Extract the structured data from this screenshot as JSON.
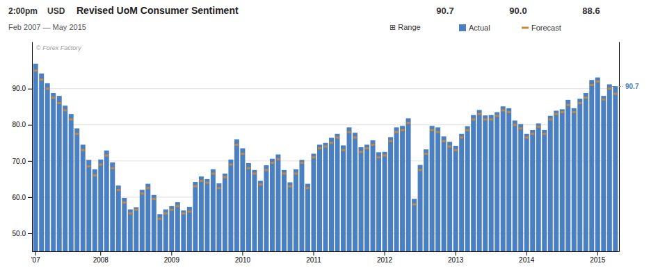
{
  "chart_data": {
    "type": "bar",
    "title": "Revised UoM Consumer Sentiment",
    "subtitle": "Feb 2007 — May 2015",
    "annotations": [
      "2:00pm",
      "USD",
      "90.7",
      "90.0",
      "88.6",
      "⊞ Range",
      "© Forex Factory"
    ],
    "categories": [
      "'07",
      null,
      null,
      null,
      null,
      null,
      null,
      null,
      null,
      null,
      null,
      "2008",
      null,
      null,
      null,
      null,
      null,
      null,
      null,
      null,
      null,
      null,
      null,
      "2009",
      null,
      null,
      null,
      null,
      null,
      null,
      null,
      null,
      null,
      null,
      null,
      "2010",
      null,
      null,
      null,
      null,
      null,
      null,
      null,
      null,
      null,
      null,
      null,
      "2011",
      null,
      null,
      null,
      null,
      null,
      null,
      null,
      null,
      null,
      null,
      null,
      "2012",
      null,
      null,
      null,
      null,
      null,
      null,
      null,
      null,
      null,
      null,
      null,
      "2013",
      null,
      null,
      null,
      null,
      null,
      null,
      null,
      null,
      null,
      null,
      null,
      "2014",
      null,
      null,
      null,
      null,
      null,
      null,
      null,
      null,
      null,
      null,
      null,
      "2015",
      null,
      null,
      null
    ],
    "series": [
      {
        "name": "Actual",
        "type": "bar",
        "color": "#4a7fc1",
        "values": [
          96.9,
          94.2,
          91.5,
          88.8,
          88.0,
          85.3,
          83.0,
          79.0,
          74.5,
          70.3,
          67.7,
          70.4,
          72.9,
          69.6,
          63.2,
          59.8,
          56.6,
          57.2,
          62.0,
          63.7,
          60.6,
          55.3,
          56.6,
          57.5,
          58.6,
          56.3,
          57.3,
          64.2,
          65.7,
          65.0,
          67.7,
          63.8,
          66.5,
          70.4,
          76.0,
          73.5,
          69.4,
          67.5,
          64.5,
          68.8,
          70.6,
          71.8,
          67.5,
          64.1,
          67.7,
          70.3,
          63.7,
          72.0,
          74.5,
          75.0,
          76.4,
          77.5,
          74.3,
          79.3,
          77.8,
          73.8,
          74.5,
          75.7,
          72.4,
          72.5,
          76.6,
          79.3,
          79.7,
          81.8,
          59.5,
          68.9,
          73.2,
          79.7,
          79.3,
          76.8,
          75.3,
          74.2,
          77.5,
          79.6,
          82.7,
          84.1,
          82.6,
          82.7,
          83.5,
          85.1,
          84.6,
          81.2,
          80.2,
          77.5,
          78.6,
          80.4,
          78.6,
          82.5,
          83.9,
          84.3,
          86.9,
          84.6,
          87.2,
          88.8,
          92.4,
          93.1,
          88.0,
          91.2,
          90.7
        ]
      },
      {
        "name": "Forecast",
        "type": "scatter",
        "marker": "dash",
        "color": "#c8873a",
        "values": [
          95.0,
          92.5,
          90.0,
          87.5,
          86.0,
          84.0,
          81.5,
          77.5,
          73.0,
          68.5,
          66.0,
          69.0,
          71.5,
          68.0,
          62.0,
          58.5,
          55.5,
          56.5,
          61.0,
          62.5,
          59.5,
          54.0,
          55.5,
          56.5,
          57.5,
          55.5,
          56.0,
          63.0,
          64.5,
          64.0,
          66.5,
          62.5,
          65.5,
          69.0,
          74.5,
          72.0,
          68.0,
          66.5,
          63.5,
          67.5,
          69.5,
          70.5,
          66.5,
          63.0,
          66.5,
          69.5,
          62.5,
          71.0,
          73.5,
          74.0,
          75.0,
          76.5,
          73.0,
          78.0,
          76.5,
          72.5,
          73.5,
          74.5,
          71.0,
          71.5,
          75.5,
          78.0,
          78.5,
          80.5,
          58.0,
          67.5,
          72.0,
          78.5,
          78.0,
          75.5,
          74.0,
          73.0,
          76.5,
          78.5,
          81.5,
          83.0,
          81.5,
          81.5,
          82.5,
          84.0,
          83.5,
          80.0,
          79.0,
          76.5,
          77.5,
          79.5,
          77.5,
          81.5,
          83.0,
          83.5,
          85.5,
          83.5,
          86.0,
          87.5,
          91.0,
          92.0,
          87.0,
          90.0,
          88.6
        ]
      }
    ],
    "ylim": [
      45.0,
      103.0
    ],
    "yticks": [
      {
        "value": 50.0,
        "label": "50.0"
      },
      {
        "value": 60.0,
        "label": "60.0"
      },
      {
        "value": 70.0,
        "label": "70.0"
      },
      {
        "value": 80.0,
        "label": "80.0"
      },
      {
        "value": 90.0,
        "label": "90.0"
      }
    ],
    "y2lim": [
      45.0,
      103.0
    ],
    "y2ticks": [
      90.7
    ],
    "grid": true,
    "legend": "top-right"
  }
}
